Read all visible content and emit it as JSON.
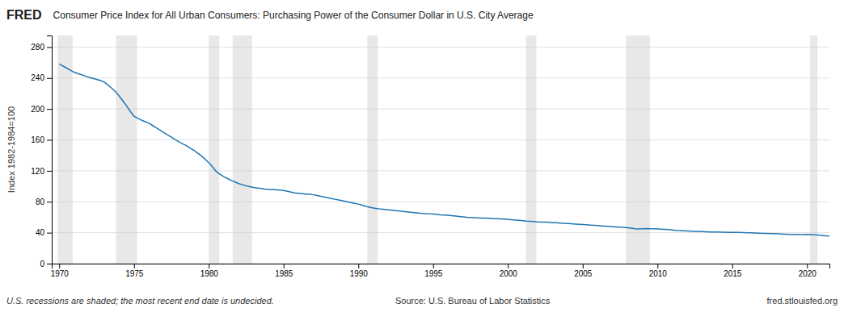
{
  "chart_data": {
    "type": "line",
    "title": "Consumer Price Index for All Urban Consumers: Purchasing Power of the Consumer Dollar in U.S. City Average",
    "y_label": "Index 1982-1984=100",
    "annotations": [
      "FRED",
      "U.S. recessions are shaded; the most recent end date is undecided.",
      "Source: U.S. Bureau of Labor Statistics",
      "fred.stlouisfed.org"
    ],
    "grid": true,
    "xlim": [
      1969.5,
      2021.5
    ],
    "xticks": [
      1970,
      1975,
      1980,
      1985,
      1990,
      1995,
      2000,
      2005,
      2010,
      2015,
      2020
    ],
    "ylim": [
      0,
      295
    ],
    "yticks": [
      0,
      40,
      80,
      120,
      160,
      200,
      240,
      280
    ],
    "recession_bands": [
      [
        1969.9,
        1970.9
      ],
      [
        1973.8,
        1975.2
      ],
      [
        1980.0,
        1980.7
      ],
      [
        1981.6,
        1982.9
      ],
      [
        1990.6,
        1991.3
      ],
      [
        2001.2,
        2001.9
      ],
      [
        2007.9,
        2009.5
      ],
      [
        2020.2,
        2020.7
      ]
    ],
    "x": [
      1970.0,
      1970.25,
      1970.5,
      1970.75,
      1971.0,
      1971.25,
      1971.5,
      1971.75,
      1972.0,
      1972.25,
      1972.5,
      1972.75,
      1973.0,
      1973.25,
      1973.5,
      1973.75,
      1974.0,
      1974.25,
      1974.5,
      1974.75,
      1975.0,
      1975.25,
      1975.5,
      1975.75,
      1976.0,
      1976.25,
      1976.5,
      1976.75,
      1977.0,
      1977.25,
      1977.5,
      1977.75,
      1978.0,
      1978.25,
      1978.5,
      1978.75,
      1979.0,
      1979.25,
      1979.5,
      1979.75,
      1980.0,
      1980.25,
      1980.5,
      1980.75,
      1981.0,
      1981.25,
      1981.5,
      1981.75,
      1982.0,
      1982.25,
      1982.5,
      1982.75,
      1983.0,
      1983.25,
      1983.5,
      1983.75,
      1984.0,
      1984.25,
      1984.5,
      1984.75,
      1985.0,
      1985.25,
      1985.5,
      1985.75,
      1986.0,
      1986.25,
      1986.5,
      1986.75,
      1987.0,
      1987.25,
      1987.5,
      1987.75,
      1988.0,
      1988.25,
      1988.5,
      1988.75,
      1989.0,
      1989.25,
      1989.5,
      1989.75,
      1990.0,
      1990.25,
      1990.5,
      1990.75,
      1991.0,
      1991.25,
      1991.5,
      1991.75,
      1992.0,
      1992.25,
      1992.5,
      1992.75,
      1993.0,
      1993.25,
      1993.5,
      1993.75,
      1994.0,
      1994.25,
      1994.5,
      1994.75,
      1995.0,
      1995.25,
      1995.5,
      1995.75,
      1996.0,
      1996.25,
      1996.5,
      1996.75,
      1997.0,
      1997.25,
      1997.5,
      1997.75,
      1998.0,
      1998.25,
      1998.5,
      1998.75,
      1999.0,
      1999.25,
      1999.5,
      1999.75,
      2000.0,
      2000.25,
      2000.5,
      2000.75,
      2001.0,
      2001.25,
      2001.5,
      2001.75,
      2002.0,
      2002.25,
      2002.5,
      2002.75,
      2003.0,
      2003.25,
      2003.5,
      2003.75,
      2004.0,
      2004.25,
      2004.5,
      2004.75,
      2005.0,
      2005.25,
      2005.5,
      2005.75,
      2006.0,
      2006.25,
      2006.5,
      2006.75,
      2007.0,
      2007.25,
      2007.5,
      2007.75,
      2008.0,
      2008.25,
      2008.5,
      2008.75,
      2009.0,
      2009.25,
      2009.5,
      2009.75,
      2010.0,
      2010.25,
      2010.5,
      2010.75,
      2011.0,
      2011.25,
      2011.5,
      2011.75,
      2012.0,
      2012.25,
      2012.5,
      2012.75,
      2013.0,
      2013.25,
      2013.5,
      2013.75,
      2014.0,
      2014.25,
      2014.5,
      2014.75,
      2015.0,
      2015.25,
      2015.5,
      2015.75,
      2016.0,
      2016.25,
      2016.5,
      2016.75,
      2017.0,
      2017.25,
      2017.5,
      2017.75,
      2018.0,
      2018.25,
      2018.5,
      2018.75,
      2019.0,
      2019.25,
      2019.5,
      2019.75,
      2020.0,
      2020.25,
      2020.5,
      2020.75,
      2021.0,
      2021.25,
      2021.5
    ],
    "values": [
      258.2,
      255.5,
      252.8,
      250.1,
      247.5,
      245.8,
      244.2,
      242.5,
      240.8,
      239.5,
      238.2,
      236.8,
      235.0,
      231.0,
      227.0,
      222.5,
      217.0,
      210.5,
      204.0,
      197.0,
      190.5,
      188.0,
      185.5,
      183.5,
      181.5,
      178.5,
      175.5,
      172.5,
      169.5,
      166.5,
      163.5,
      160.5,
      157.5,
      155.0,
      152.5,
      149.5,
      146.5,
      143.0,
      139.5,
      135.0,
      130.5,
      125.0,
      119.0,
      115.5,
      112.5,
      110.0,
      107.5,
      105.5,
      103.5,
      102.0,
      100.5,
      99.5,
      98.5,
      97.8,
      97.2,
      96.5,
      96.0,
      95.8,
      95.5,
      95.2,
      94.5,
      93.5,
      92.5,
      91.5,
      91.0,
      90.5,
      90.0,
      89.8,
      89.0,
      88.0,
      87.0,
      86.0,
      85.0,
      84.0,
      83.0,
      82.0,
      81.0,
      80.0,
      79.0,
      78.0,
      77.0,
      75.5,
      74.0,
      73.0,
      72.0,
      71.2,
      70.5,
      70.0,
      69.5,
      69.0,
      68.5,
      68.0,
      67.5,
      67.0,
      66.5,
      66.0,
      65.5,
      65.0,
      64.7,
      64.5,
      64.0,
      63.5,
      63.0,
      62.8,
      62.5,
      62.0,
      61.5,
      61.0,
      60.5,
      60.0,
      59.7,
      59.4,
      59.2,
      59.0,
      58.8,
      58.6,
      58.2,
      58.0,
      57.8,
      57.5,
      57.2,
      56.8,
      56.4,
      56.0,
      55.5,
      55.0,
      54.7,
      54.4,
      54.0,
      53.8,
      53.6,
      53.4,
      53.0,
      52.8,
      52.5,
      52.2,
      51.8,
      51.5,
      51.2,
      50.9,
      50.5,
      50.2,
      49.9,
      49.6,
      49.2,
      48.8,
      48.5,
      48.2,
      47.8,
      47.5,
      47.2,
      46.9,
      46.5,
      45.8,
      45.2,
      44.8,
      45.0,
      45.3,
      45.2,
      45.0,
      44.8,
      44.5,
      44.2,
      44.0,
      43.5,
      43.0,
      42.7,
      42.4,
      42.2,
      42.0,
      41.8,
      41.6,
      41.4,
      41.2,
      41.0,
      40.9,
      40.8,
      40.7,
      40.6,
      40.5,
      40.5,
      40.4,
      40.3,
      40.2,
      40.0,
      39.8,
      39.6,
      39.4,
      39.2,
      39.0,
      38.8,
      38.7,
      38.5,
      38.3,
      38.1,
      37.9,
      37.8,
      37.7,
      37.6,
      37.5,
      37.9,
      37.6,
      37.3,
      37.0,
      36.5,
      36.0,
      35.7
    ]
  }
}
